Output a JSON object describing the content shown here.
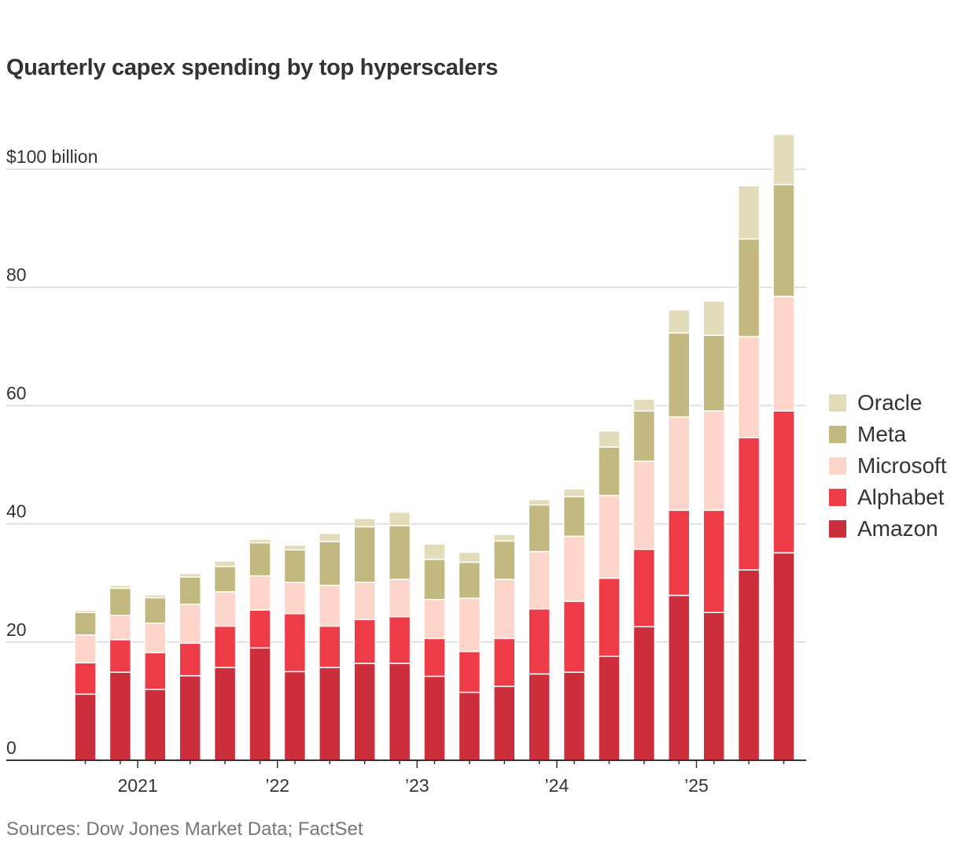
{
  "chart_data": {
    "type": "bar",
    "stacked": true,
    "title": "Quarterly capex spending by top hyperscalers",
    "unit_label": "$100 billion",
    "source": "Sources: Dow Jones Market Data; FactSet",
    "ylim": [
      0,
      110
    ],
    "yticks": [
      0,
      20,
      40,
      60,
      80,
      100
    ],
    "ytick_labels": [
      "0",
      "20",
      "40",
      "60",
      "80",
      "$100 billion"
    ],
    "xtick_labels": [
      {
        "label": "2021",
        "after_bar": 1
      },
      {
        "label": "’22",
        "after_bar": 5
      },
      {
        "label": "’23",
        "after_bar": 9
      },
      {
        "label": "’24",
        "after_bar": 13
      },
      {
        "label": "’25",
        "after_bar": 17
      }
    ],
    "legend_order": [
      "Oracle",
      "Meta",
      "Microsoft",
      "Alphabet",
      "Amazon"
    ],
    "series": [
      {
        "name": "Amazon",
        "color": "#cc2f3b",
        "values": [
          11.2,
          14.9,
          12.0,
          14.3,
          15.7,
          19.0,
          15.0,
          15.7,
          16.4,
          16.4,
          14.2,
          11.5,
          12.5,
          14.6,
          14.9,
          17.6,
          22.6,
          27.9,
          25.0,
          32.2,
          35.1
        ]
      },
      {
        "name": "Alphabet",
        "color": "#ee3b48",
        "values": [
          5.3,
          5.5,
          6.2,
          5.5,
          7.0,
          6.4,
          9.8,
          7.0,
          7.4,
          7.9,
          6.4,
          6.9,
          8.1,
          11.0,
          12.0,
          13.2,
          13.1,
          14.4,
          17.3,
          22.4,
          24.0
        ]
      },
      {
        "name": "Microsoft",
        "color": "#fdd5cb",
        "values": [
          4.7,
          4.1,
          5.0,
          6.6,
          5.8,
          5.8,
          5.3,
          6.9,
          6.3,
          6.3,
          6.6,
          9.0,
          10.0,
          9.7,
          11.0,
          14.0,
          14.9,
          15.8,
          16.8,
          17.1,
          19.4
        ]
      },
      {
        "name": "Meta",
        "color": "#c1b97f",
        "values": [
          3.8,
          4.6,
          4.3,
          4.6,
          4.3,
          5.6,
          5.5,
          7.4,
          9.4,
          9.1,
          6.8,
          6.1,
          6.5,
          7.9,
          6.7,
          8.2,
          8.5,
          14.2,
          12.8,
          16.5,
          18.9
        ]
      },
      {
        "name": "Oracle",
        "color": "#e3dcbb",
        "values": [
          0.4,
          0.5,
          0.5,
          0.6,
          0.9,
          0.6,
          0.8,
          1.4,
          1.4,
          2.3,
          2.6,
          1.7,
          1.1,
          0.9,
          1.3,
          2.7,
          2.0,
          3.9,
          5.8,
          9.0,
          8.5
        ]
      }
    ]
  }
}
